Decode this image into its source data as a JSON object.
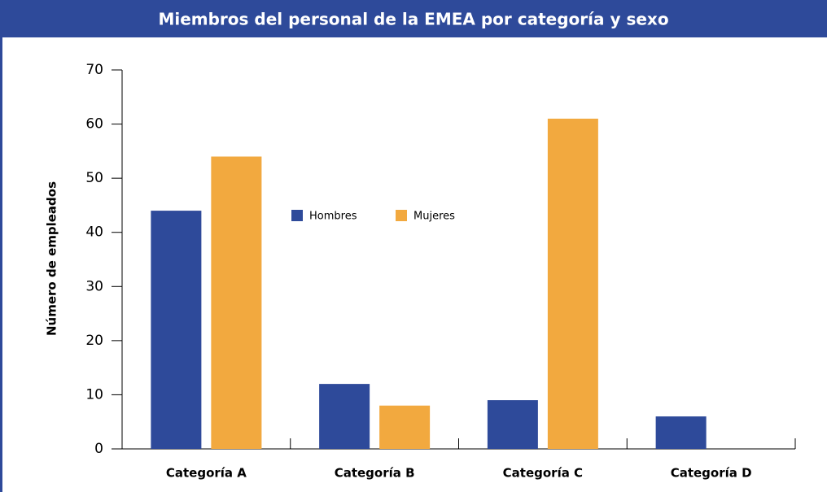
{
  "chart_data": {
    "type": "bar",
    "title": "Miembros del personal de la EMEA por categoría y sexo",
    "y_label": "Número de empleados",
    "categories": [
      "Categoría A",
      "Categoría B",
      "Categoría C",
      "Categoría D"
    ],
    "series": [
      {
        "name": "Hombres",
        "color": "#2e4a9a",
        "values": [
          44,
          12,
          9,
          6
        ]
      },
      {
        "name": "Mujeres",
        "color": "#f2a93f",
        "values": [
          54,
          8,
          61,
          0
        ]
      }
    ],
    "ylim": [
      0,
      70
    ],
    "yticks": [
      0,
      10,
      20,
      30,
      40,
      50,
      60,
      70
    ],
    "grid": false
  }
}
